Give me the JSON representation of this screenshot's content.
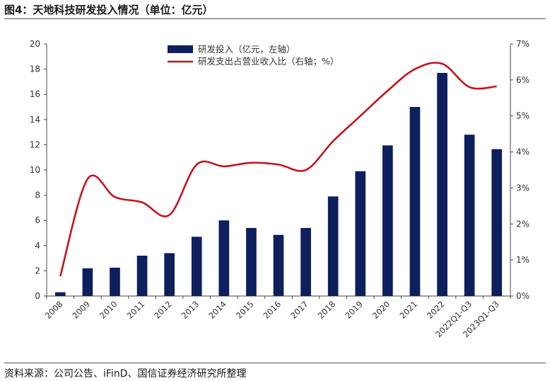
{
  "header": {
    "title": "图4：天地科技研发投入情况（单位：亿元）"
  },
  "footer": {
    "source": "资料来源：公司公告、iFinD、国信证券经济研究所整理"
  },
  "chart_data": {
    "type": "bar",
    "categories": [
      "2008",
      "2009",
      "2010",
      "2011",
      "2012",
      "2013",
      "2014",
      "2015",
      "2016",
      "2017",
      "2018",
      "2019",
      "2020",
      "2021",
      "2022",
      "2022Q1-Q3",
      "2023Q1-Q3"
    ],
    "series": [
      {
        "name": "研发投入（亿元，左轴）",
        "type": "bar",
        "axis": "left",
        "color": "#0d1f5c",
        "values": [
          0.3,
          2.2,
          2.25,
          3.2,
          3.4,
          4.7,
          6.0,
          5.4,
          4.85,
          5.4,
          7.9,
          9.9,
          11.95,
          15.0,
          17.7,
          12.8,
          11.65
        ]
      },
      {
        "name": "研发支出占营业收入比（右轴；%）",
        "type": "line",
        "axis": "right",
        "color": "#c0161d",
        "values": [
          0.55,
          3.25,
          2.75,
          2.6,
          2.25,
          3.65,
          3.6,
          3.7,
          3.65,
          3.5,
          4.3,
          5.0,
          5.7,
          6.3,
          6.45,
          5.8,
          5.82
        ]
      }
    ],
    "left_axis": {
      "ylim": [
        0,
        20
      ],
      "ticks": [
        "0",
        "2",
        "4",
        "6",
        "8",
        "10",
        "12",
        "14",
        "16",
        "18",
        "20"
      ]
    },
    "right_axis": {
      "ylim": [
        0,
        7
      ],
      "ticks": [
        "0%",
        "1%",
        "2%",
        "3%",
        "4%",
        "5%",
        "6%",
        "7%"
      ]
    },
    "legend": {
      "position": "top-center"
    },
    "grid": false
  }
}
